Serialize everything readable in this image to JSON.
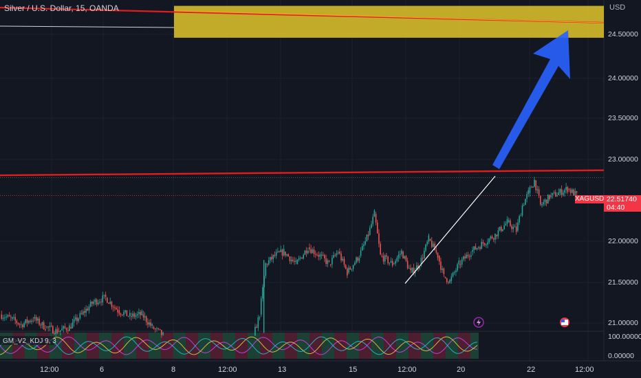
{
  "header": {
    "symbol_title": "Silver / U.S. Dollar, 15, OANDA",
    "currency": "USD"
  },
  "price_scale": {
    "ticks": [
      "24.50000",
      "24.00000",
      "23.50000",
      "23.00000",
      "22.00000",
      "21.50000",
      "21.00000"
    ],
    "indicator_ticks": [
      "100.00000",
      "0.00000"
    ]
  },
  "time_scale": {
    "ticks": [
      "12:00",
      "6",
      "8",
      "12:00",
      "13",
      "15",
      "12:00",
      "20",
      "22",
      "12:00"
    ]
  },
  "last_price": {
    "symbol": "XAGUSD",
    "value": "22.51740",
    "countdown": "04:40"
  },
  "indicator": {
    "label": "GM_V2_KDJ 9, 3"
  },
  "colors": {
    "background": "#131722",
    "bull": "#26a69a",
    "bear": "#ef5350",
    "resistance_line": "#e01e1e",
    "target_zone": "#e3c62b",
    "arrow": "#2962ff",
    "price_label": "#f23645"
  },
  "icons": {
    "event_icon": "lightning-icon",
    "economic_event_icon": "us-flag-icon"
  },
  "chart_data": {
    "type": "candlestick",
    "title": "Silver / U.S. Dollar, 15, OANDA",
    "ylabel": "USD",
    "ylim": [
      20.9,
      24.85
    ],
    "x_ticks": [
      "12:00",
      "6",
      "8",
      "12:00",
      "13",
      "15",
      "12:00",
      "20",
      "22",
      "12:00"
    ],
    "price_path": [
      [
        0.0,
        21.1
      ],
      [
        0.018,
        21.05
      ],
      [
        0.035,
        20.98
      ],
      [
        0.055,
        21.05
      ],
      [
        0.075,
        20.95
      ],
      [
        0.095,
        20.9
      ],
      [
        0.115,
        20.95
      ],
      [
        0.135,
        21.1
      ],
      [
        0.155,
        21.25
      ],
      [
        0.175,
        21.3
      ],
      [
        0.195,
        21.15
      ],
      [
        0.215,
        21.08
      ],
      [
        0.235,
        21.1
      ],
      [
        0.252,
        20.95
      ],
      [
        0.27,
        20.85
      ],
      [
        0.42,
        20.85
      ],
      [
        0.43,
        21.1
      ],
      [
        0.44,
        21.7
      ],
      [
        0.455,
        21.8
      ],
      [
        0.47,
        21.85
      ],
      [
        0.49,
        21.7
      ],
      [
        0.51,
        21.9
      ],
      [
        0.53,
        21.8
      ],
      [
        0.545,
        21.7
      ],
      [
        0.56,
        21.85
      ],
      [
        0.575,
        21.6
      ],
      [
        0.595,
        21.8
      ],
      [
        0.61,
        22.05
      ],
      [
        0.62,
        22.3
      ],
      [
        0.63,
        21.8
      ],
      [
        0.65,
        21.7
      ],
      [
        0.665,
        21.85
      ],
      [
        0.68,
        21.6
      ],
      [
        0.695,
        21.7
      ],
      [
        0.71,
        22.0
      ],
      [
        0.725,
        21.8
      ],
      [
        0.735,
        21.55
      ],
      [
        0.745,
        21.5
      ],
      [
        0.76,
        21.7
      ],
      [
        0.78,
        21.85
      ],
      [
        0.8,
        21.95
      ],
      [
        0.82,
        22.05
      ],
      [
        0.84,
        22.2
      ],
      [
        0.855,
        22.1
      ],
      [
        0.865,
        22.4
      ],
      [
        0.875,
        22.55
      ],
      [
        0.885,
        22.7
      ],
      [
        0.895,
        22.4
      ],
      [
        0.91,
        22.5
      ],
      [
        0.925,
        22.55
      ],
      [
        0.94,
        22.6
      ],
      [
        0.955,
        22.52
      ]
    ],
    "annotations": {
      "upper_resistance": 24.6,
      "lower_resistance": 22.8,
      "target_zone": [
        24.4,
        24.78
      ],
      "last_price": 22.5174,
      "trendline_points": [
        [
          21.39,
          21.47
        ],
        [
          22.7,
          22.75
        ]
      ]
    }
  }
}
